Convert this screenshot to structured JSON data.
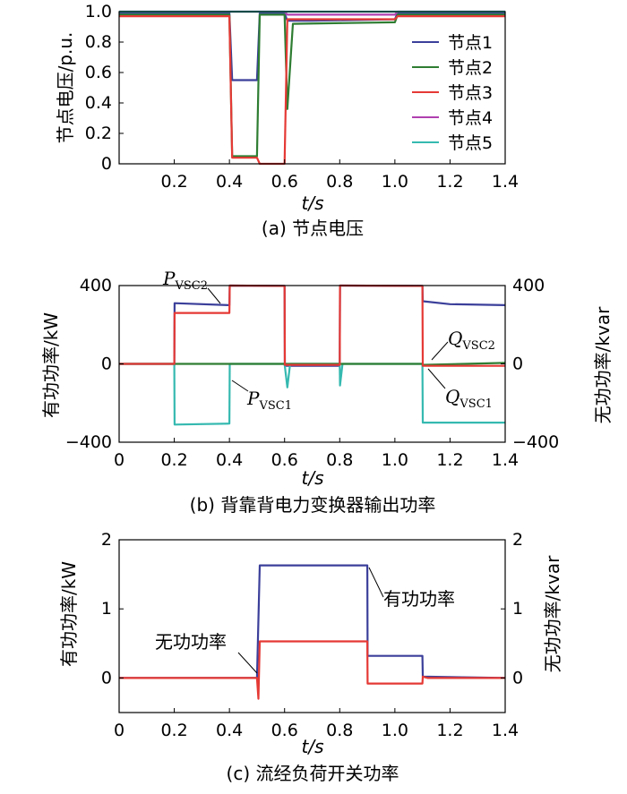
{
  "chart_data": [
    {
      "id": "a",
      "type": "line",
      "caption": "(a)  节点电压",
      "xlabel": "t/s",
      "ylabel": "节点电压/p.u.",
      "xlim": [
        0,
        1.4
      ],
      "ylim": [
        0,
        1.0
      ],
      "xticks": [
        "0.2",
        "0.4",
        "0.6",
        "0.8",
        "1.0",
        "1.2",
        "1.4"
      ],
      "yticks": [
        "0",
        "0.2",
        "0.4",
        "0.6",
        "0.8",
        "1.0"
      ],
      "legend_position": "right",
      "series": [
        {
          "name": "节点1",
          "color": "#3b3f9a",
          "points": [
            [
              0,
              0.99
            ],
            [
              0.4,
              0.99
            ],
            [
              0.41,
              0.55
            ],
            [
              0.5,
              0.55
            ],
            [
              0.51,
              0.99
            ],
            [
              0.6,
              0.99
            ],
            [
              0.61,
              0.94
            ],
            [
              0.7,
              0.94
            ],
            [
              1.0,
              0.95
            ],
            [
              1.01,
              0.99
            ],
            [
              1.4,
              0.99
            ]
          ]
        },
        {
          "name": "节点2",
          "color": "#2e7d32",
          "points": [
            [
              0,
              0.98
            ],
            [
              0.4,
              0.98
            ],
            [
              0.41,
              0.05
            ],
            [
              0.5,
              0.05
            ],
            [
              0.51,
              0.98
            ],
            [
              0.6,
              0.98
            ],
            [
              0.61,
              0.36
            ],
            [
              0.63,
              0.92
            ],
            [
              1.0,
              0.93
            ],
            [
              1.01,
              0.98
            ],
            [
              1.4,
              0.98
            ]
          ]
        },
        {
          "name": "节点3",
          "color": "#e53935",
          "points": [
            [
              0,
              0.97
            ],
            [
              0.4,
              0.97
            ],
            [
              0.41,
              0.04
            ],
            [
              0.5,
              0.04
            ],
            [
              0.51,
              0.0
            ],
            [
              0.6,
              0.0
            ],
            [
              0.61,
              0.95
            ],
            [
              0.7,
              0.95
            ],
            [
              1.0,
              0.95
            ],
            [
              1.01,
              0.97
            ],
            [
              1.4,
              0.97
            ]
          ]
        },
        {
          "name": "节点4",
          "color": "#b03fb0",
          "points": [
            [
              0,
              1.0
            ],
            [
              0.6,
              1.0
            ],
            [
              0.61,
              0.98
            ],
            [
              1.0,
              0.98
            ],
            [
              1.01,
              1.0
            ],
            [
              1.4,
              1.0
            ]
          ]
        },
        {
          "name": "节点5",
          "color": "#35b9b0",
          "points": [
            [
              0,
              1.0
            ],
            [
              1.4,
              1.0
            ]
          ]
        }
      ]
    },
    {
      "id": "b",
      "type": "line",
      "caption": "(b)  背靠背电力变换器输出功率",
      "xlabel": "t/s",
      "ylabel_left": "有功功率/kW",
      "ylabel_right": "无功功率/kvar",
      "xlim": [
        0,
        1.4
      ],
      "ylim": [
        -400,
        400
      ],
      "xticks": [
        "0",
        "0.2",
        "0.4",
        "0.6",
        "0.8",
        "1.0",
        "1.2",
        "1.4"
      ],
      "yticks_left": [
        "−400",
        "0",
        "400"
      ],
      "yticks_right": [
        "−400",
        "0",
        "400"
      ],
      "annotations": {
        "p_vsc2": "PVSC2",
        "p_vsc1": "PVSC1",
        "q_vsc2": "QVSC2",
        "q_vsc1": "QVSC1"
      },
      "series": [
        {
          "name": "PVSC2",
          "color": "#3b3f9a",
          "points": [
            [
              0,
              0
            ],
            [
              0.2,
              0
            ],
            [
              0.201,
              310
            ],
            [
              0.4,
              300
            ],
            [
              0.401,
              400
            ],
            [
              0.6,
              398
            ],
            [
              0.601,
              -10
            ],
            [
              0.8,
              -10
            ],
            [
              0.801,
              400
            ],
            [
              1.1,
              398
            ],
            [
              1.101,
              320
            ],
            [
              1.2,
              305
            ],
            [
              1.4,
              300
            ]
          ]
        },
        {
          "name": "PVSC1",
          "color": "#35b9b0",
          "points": [
            [
              0,
              0
            ],
            [
              0.2,
              0
            ],
            [
              0.201,
              -310
            ],
            [
              0.4,
              -305
            ],
            [
              0.401,
              0
            ],
            [
              0.6,
              0
            ],
            [
              0.61,
              -120
            ],
            [
              0.62,
              0
            ],
            [
              0.8,
              0
            ],
            [
              0.801,
              -110
            ],
            [
              0.81,
              0
            ],
            [
              1.1,
              0
            ],
            [
              1.101,
              -300
            ],
            [
              1.4,
              -300
            ]
          ]
        },
        {
          "name": "QVSC2",
          "color": "#2e7d32",
          "points": [
            [
              0,
              0
            ],
            [
              1.1,
              0
            ],
            [
              1.101,
              -5
            ],
            [
              1.4,
              5
            ]
          ]
        },
        {
          "name": "QVSC1",
          "color": "#e53935",
          "points": [
            [
              0,
              0
            ],
            [
              0.2,
              0
            ],
            [
              0.201,
              260
            ],
            [
              0.4,
              260
            ],
            [
              0.401,
              400
            ],
            [
              0.6,
              398
            ],
            [
              0.601,
              -5
            ],
            [
              0.8,
              -5
            ],
            [
              0.801,
              400
            ],
            [
              1.1,
              398
            ],
            [
              1.101,
              -10
            ],
            [
              1.4,
              -10
            ]
          ]
        }
      ]
    },
    {
      "id": "c",
      "type": "line",
      "caption": "(c)  流经负荷开关功率",
      "xlabel": "t/s",
      "ylabel_left": "有功功率/kW",
      "ylabel_right": "无功功率/kvar",
      "xlim": [
        0,
        1.4
      ],
      "ylim": [
        -0.5,
        2
      ],
      "xticks": [
        "0",
        "0.2",
        "0.4",
        "0.6",
        "0.8",
        "1.0",
        "1.2",
        "1.4"
      ],
      "yticks_left": [
        "0",
        "1",
        "2"
      ],
      "yticks_right": [
        "0",
        "1",
        "2"
      ],
      "annotations": {
        "active": "有功功率",
        "reactive": "无功功率"
      },
      "series": [
        {
          "name": "有功功率",
          "color": "#3b3f9a",
          "points": [
            [
              0,
              0
            ],
            [
              0.5,
              0
            ],
            [
              0.51,
              1.63
            ],
            [
              0.9,
              1.63
            ],
            [
              0.901,
              0.32
            ],
            [
              1.1,
              0.32
            ],
            [
              1.101,
              0.02
            ],
            [
              1.4,
              0
            ]
          ]
        },
        {
          "name": "无功功率",
          "color": "#e53935",
          "points": [
            [
              0,
              0
            ],
            [
              0.5,
              0
            ],
            [
              0.505,
              -0.3
            ],
            [
              0.51,
              0.53
            ],
            [
              0.9,
              0.53
            ],
            [
              0.901,
              -0.08
            ],
            [
              1.1,
              -0.08
            ],
            [
              1.101,
              0.02
            ],
            [
              1.12,
              0
            ],
            [
              1.4,
              0
            ]
          ]
        }
      ]
    }
  ]
}
